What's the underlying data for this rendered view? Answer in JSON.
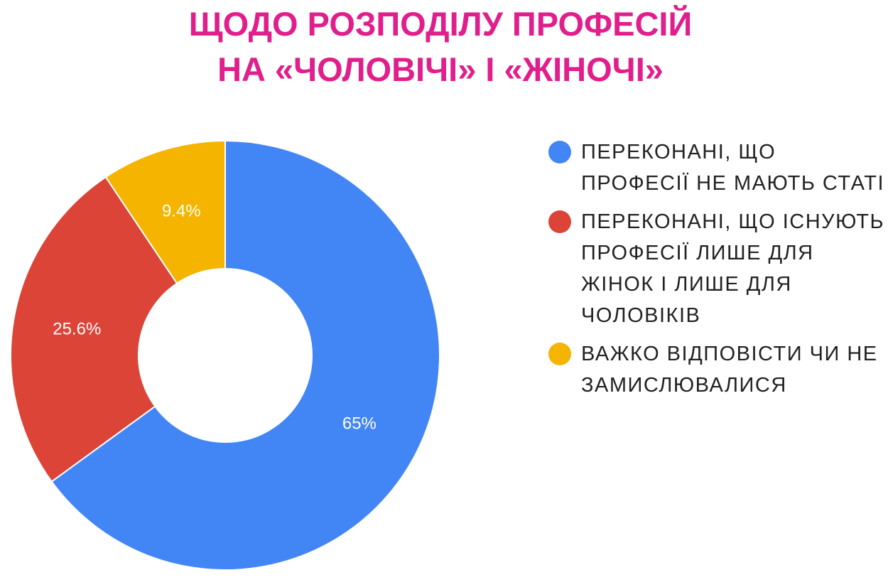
{
  "title": {
    "line1": "ЩОДО РОЗПОДІЛУ ПРОФЕСІЙ",
    "line2": "НА «ЧОЛОВІЧІ» І «ЖІНОЧІ»"
  },
  "chart_data": {
    "type": "pie",
    "donut": true,
    "title": "ЩОДО РОЗПОДІЛУ ПРОФЕСІЙ НА «ЧОЛОВІЧІ» І «ЖІНОЧІ»",
    "legend_position": "right",
    "slices": [
      {
        "label": "ПЕРЕКОНАНІ, ЩО ПРОФЕСІЇ НЕ МАЮТЬ СТАТІ",
        "value": 65,
        "value_label": "65%",
        "color": "#4285F4"
      },
      {
        "label": "ПЕРЕКОНАНІ, ЩО ІСНУЮТЬ ПРОФЕСІЇ ЛИШЕ ДЛЯ ЖІНОК І ЛИШЕ ДЛЯ ЧОЛОВІКІВ",
        "value": 25.6,
        "value_label": "25.6%",
        "color": "#DB4437"
      },
      {
        "label": "ВАЖКО ВІДПОВІСТИ ЧИ НЕ ЗАМИСЛЮВАЛИСЯ",
        "value": 9.4,
        "value_label": "9.4%",
        "color": "#F4B400"
      }
    ]
  }
}
